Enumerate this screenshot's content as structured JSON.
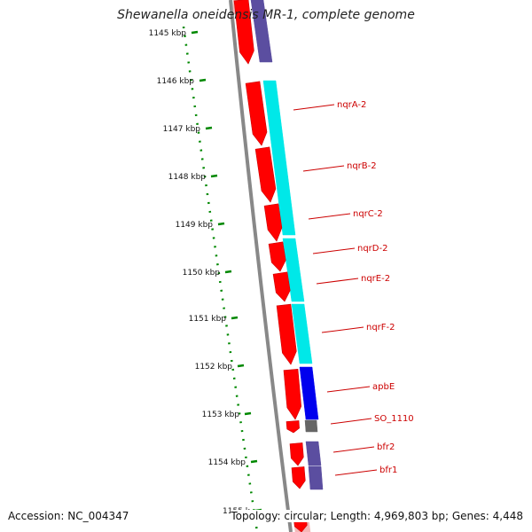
{
  "title": "Shewanella oneidensis MR-1, complete genome",
  "footer": {
    "accession": "Accession: NC_004347",
    "summary": "Topology: circular; Length: 4,969,803 bp; Genes: 4,448"
  },
  "colors": {
    "cds_forward": "#ff0000",
    "cds_reverse": "#ee0000",
    "operon_nqr": "#00e8e8",
    "apbE_block": "#0000ee",
    "bfr_block": "#5b4ea0",
    "pseudo_block": "#666666",
    "backbone": "#888888",
    "scale_dots": "#008800",
    "labels": "#cc0000"
  },
  "scale": {
    "unit": "kbp",
    "ticks": [
      "1145 kbp",
      "1146 kbp",
      "1147 kbp",
      "1148 kbp",
      "1149 kbp",
      "1150 kbp",
      "1151 kbp",
      "1152 kbp",
      "1153 kbp",
      "1154 kbp",
      "1155 k"
    ]
  },
  "genes": [
    {
      "label": "nqrA-2"
    },
    {
      "label": "nqrB-2"
    },
    {
      "label": "nqrC-2"
    },
    {
      "label": "nqrD-2"
    },
    {
      "label": "nqrE-2"
    },
    {
      "label": "nqrF-2"
    },
    {
      "label": "apbE"
    },
    {
      "label": "SO_1110"
    },
    {
      "label": "bfr2"
    },
    {
      "label": "bfr1"
    }
  ]
}
